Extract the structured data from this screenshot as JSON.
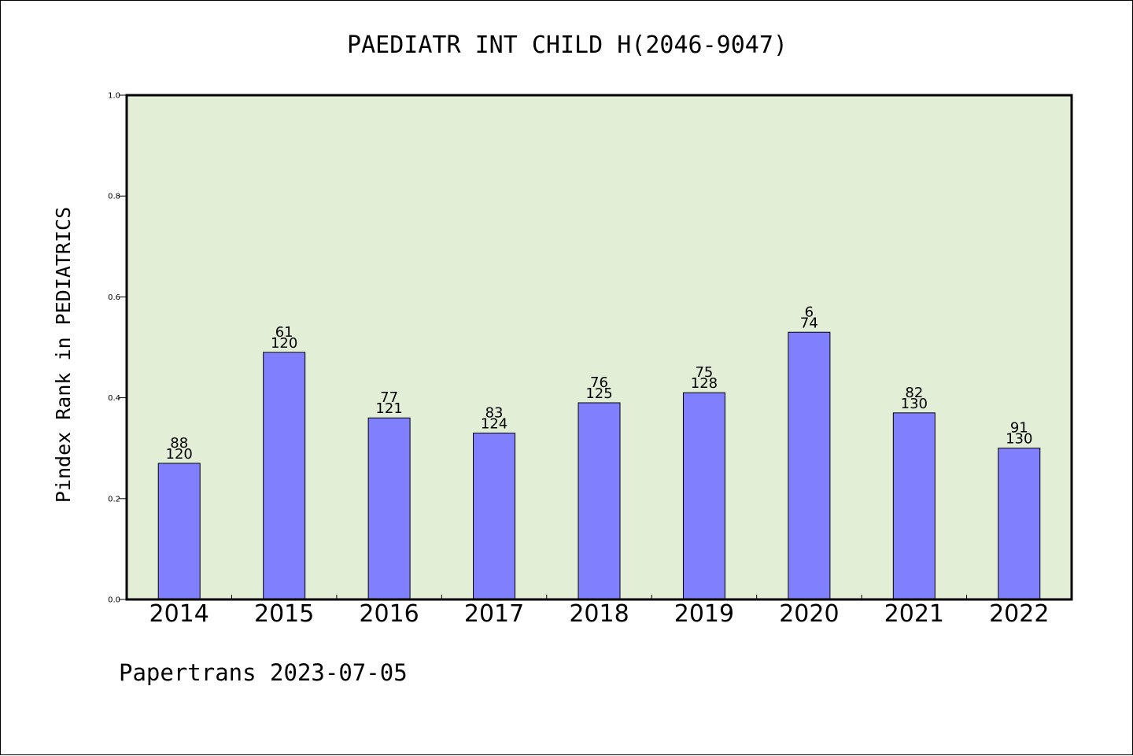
{
  "chart_data": {
    "type": "bar",
    "title": "PAEDIATR INT CHILD H(2046-9047)",
    "ylabel": "Pindex Rank in PEDIATRICS",
    "xlabel": "",
    "ylim": [
      0,
      1.0
    ],
    "yticks": [
      "0.0",
      "0.2",
      "0.4",
      "0.6",
      "0.8",
      "1.0"
    ],
    "grid": false,
    "categories": [
      "2014",
      "2015",
      "2016",
      "2017",
      "2018",
      "2019",
      "2020",
      "2021",
      "2022"
    ],
    "values": [
      0.27,
      0.49,
      0.36,
      0.33,
      0.39,
      0.41,
      0.53,
      0.37,
      0.3
    ],
    "labels_top": [
      "88",
      "61",
      "77",
      "83",
      "76",
      "75",
      "6",
      "82",
      "91"
    ],
    "labels_bottom": [
      "120",
      "120",
      "121",
      "124",
      "125",
      "128",
      "74",
      "130",
      "130"
    ],
    "colors": {
      "bar": "#8080ff",
      "plot_background": "#e2efd6"
    }
  },
  "footer": "Papertrans 2023-07-05"
}
